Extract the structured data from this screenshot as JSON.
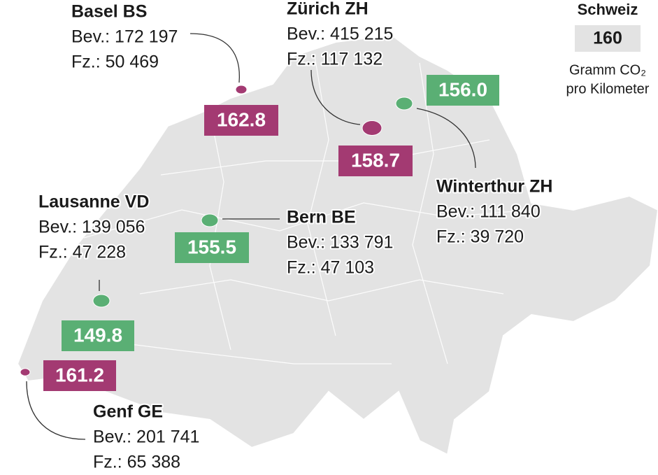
{
  "cities": [
    {
      "name": "Basel BS",
      "population": "Bev.: 172 197",
      "vehicles": "Fz.: 50 469",
      "value": "162.8",
      "color": "#a33a72"
    },
    {
      "name": "Zürich ZH",
      "population": "Bev.: 415 215",
      "vehicles": "Fz.: 117 132",
      "value": "158.7",
      "color": "#a33a72"
    },
    {
      "name": "Winterthur ZH",
      "population": "Bev.: 111 840",
      "vehicles": "Fz.: 39 720",
      "value": "156.0",
      "color": "#5aaf74"
    },
    {
      "name": "Lausanne VD",
      "population": "Bev.: 139 056",
      "vehicles": "Fz.: 47 228",
      "value": "149.8",
      "color": "#5aaf74"
    },
    {
      "name": "Bern BE",
      "population": "Bev.: 133 791",
      "vehicles": "Fz.: 47 103",
      "value": "155.5",
      "color": "#5aaf74"
    },
    {
      "name": "Genf GE",
      "population": "Bev.: 201 741",
      "vehicles": "Fz.: 65 388",
      "value": "161.2",
      "color": "#a33a72"
    }
  ],
  "legend": {
    "title": "Schweiz",
    "value": "160",
    "unit_line1": "Gramm CO₂",
    "unit_line2": "pro Kilometer"
  }
}
